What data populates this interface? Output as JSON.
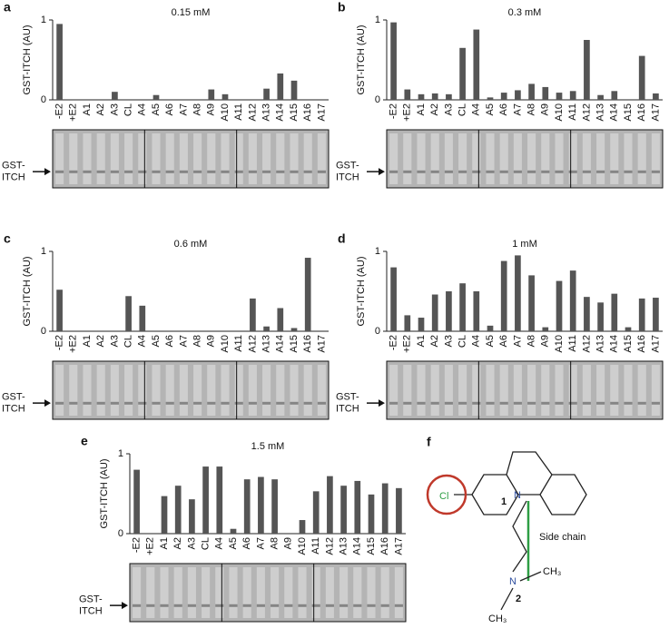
{
  "chart_data": [
    {
      "type": "bar",
      "panel": "a",
      "title": "0.15 mM",
      "y_label": "GST-ITCH (AU)",
      "gel_label": [
        "GST-",
        "ITCH"
      ],
      "color": "#555555",
      "categories": [
        "-E2",
        "+E2",
        "A1",
        "A2",
        "A3",
        "CL",
        "A4",
        "A5",
        "A6",
        "A7",
        "A8",
        "A9",
        "A10",
        "A11",
        "A12",
        "A13",
        "A14",
        "A15",
        "A16",
        "A17"
      ],
      "values": [
        0.95,
        0,
        0,
        0,
        0.1,
        0,
        0,
        0.06,
        0,
        0,
        0,
        0.13,
        0.07,
        0,
        0,
        0.14,
        0.33,
        0.24,
        0,
        0
      ],
      "ylim": [
        0,
        1
      ],
      "yticks": [
        0,
        1
      ]
    },
    {
      "type": "bar",
      "panel": "b",
      "title": "0.3 mM",
      "y_label": "GST-ITCH (AU)",
      "gel_label": [
        "GST-",
        "ITCH"
      ],
      "color": "#555555",
      "categories": [
        "-E2",
        "+E2",
        "A1",
        "A2",
        "A3",
        "CL",
        "A4",
        "A5",
        "A6",
        "A7",
        "A8",
        "A9",
        "A10",
        "A11",
        "A12",
        "A13",
        "A14",
        "A15",
        "A16",
        "A17"
      ],
      "values": [
        0.97,
        0.13,
        0.07,
        0.08,
        0.07,
        0.65,
        0.88,
        0.03,
        0.09,
        0.12,
        0.2,
        0.16,
        0.09,
        0.11,
        0.75,
        0.06,
        0.11,
        0,
        0.55,
        0.08
      ],
      "ylim": [
        0,
        1
      ],
      "yticks": [
        0,
        1
      ]
    },
    {
      "type": "bar",
      "panel": "c",
      "title": "0.6 mM",
      "y_label": "GST-ITCH (AU)",
      "gel_label": [
        "GST-",
        "ITCH"
      ],
      "color": "#555555",
      "categories": [
        "-E2",
        "+E2",
        "A1",
        "A2",
        "A3",
        "CL",
        "A4",
        "A5",
        "A6",
        "A7",
        "A8",
        "A9",
        "A10",
        "A11",
        "A12",
        "A13",
        "A14",
        "A15",
        "A16",
        "A17"
      ],
      "values": [
        0.52,
        0,
        0,
        0,
        0,
        0.44,
        0.32,
        0,
        0,
        0,
        0,
        0,
        0,
        0,
        0.41,
        0.06,
        0.29,
        0.04,
        0.92,
        0
      ],
      "ylim": [
        0,
        1
      ],
      "yticks": [
        0,
        1
      ]
    },
    {
      "type": "bar",
      "panel": "d",
      "title": "1 mM",
      "y_label": "GST-ITCH (AU)",
      "gel_label": [
        "GST-",
        "ITCH"
      ],
      "color": "#555555",
      "categories": [
        "-E2",
        "+E2",
        "A1",
        "A2",
        "A3",
        "CL",
        "A4",
        "A5",
        "A6",
        "A7",
        "A8",
        "A9",
        "A10",
        "A11",
        "A12",
        "A13",
        "A14",
        "A15",
        "A16",
        "A17"
      ],
      "values": [
        0.8,
        0.2,
        0.17,
        0.46,
        0.5,
        0.6,
        0.5,
        0.07,
        0.88,
        0.95,
        0.7,
        0.05,
        0.63,
        0.76,
        0.43,
        0.36,
        0.47,
        0.05,
        0.41,
        0.42
      ],
      "ylim": [
        0,
        1
      ],
      "yticks": [
        0,
        1
      ]
    },
    {
      "type": "bar",
      "panel": "e",
      "title": "1.5 mM",
      "y_label": "GST-ITCH (AU)",
      "gel_label": [
        "GST-",
        "ITCH"
      ],
      "color": "#555555",
      "categories": [
        "-E2",
        "+E2",
        "A1",
        "A2",
        "A3",
        "CL",
        "A4",
        "A5",
        "A6",
        "A7",
        "A8",
        "A9",
        "A10",
        "A11",
        "A12",
        "A13",
        "A14",
        "A15",
        "A16",
        "A17"
      ],
      "values": [
        0.8,
        0,
        0.47,
        0.6,
        0.43,
        0.84,
        0.84,
        0.06,
        0.68,
        0.71,
        0.68,
        0,
        0.17,
        0.53,
        0.72,
        0.6,
        0.66,
        0.49,
        0.63,
        0.57
      ],
      "ylim": [
        0,
        1
      ],
      "yticks": [
        0,
        1
      ]
    }
  ],
  "structure": {
    "panel": "f",
    "chlorine": "Cl",
    "nitrogen_1": "N",
    "label_1": "1",
    "side_chain": "Side chain",
    "nitrogen_2": "N",
    "label_2": "2",
    "methyl_right": "CH₃",
    "methyl_bottom": "CH₃"
  }
}
